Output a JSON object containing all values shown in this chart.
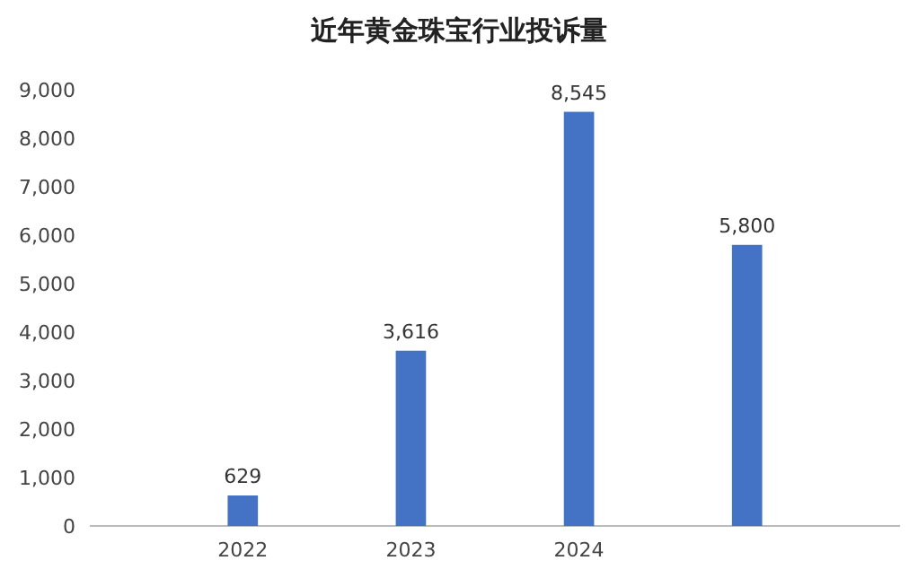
{
  "chart_data": {
    "type": "bar",
    "title": "近年黄金珠宝行业投诉量",
    "categories": [
      "2022",
      "2023",
      "2024",
      null
    ],
    "values": [
      629,
      3616,
      8545,
      5800
    ],
    "value_labels": [
      "629",
      "3,616",
      "8,545",
      "5,800"
    ],
    "color": "#4472c4",
    "ylim": [
      0,
      9000
    ],
    "yticks": [
      {
        "value": 0,
        "label": "0"
      },
      {
        "value": 1000,
        "label": "1,000"
      },
      {
        "value": 2000,
        "label": "2,000"
      },
      {
        "value": 3000,
        "label": "3,000"
      },
      {
        "value": 4000,
        "label": "4,000"
      },
      {
        "value": 5000,
        "label": "5,000"
      },
      {
        "value": 6000,
        "label": "6,000"
      },
      {
        "value": 7000,
        "label": "7,000"
      },
      {
        "value": 8000,
        "label": "8,000"
      },
      {
        "value": 9000,
        "label": "9,000"
      }
    ]
  }
}
